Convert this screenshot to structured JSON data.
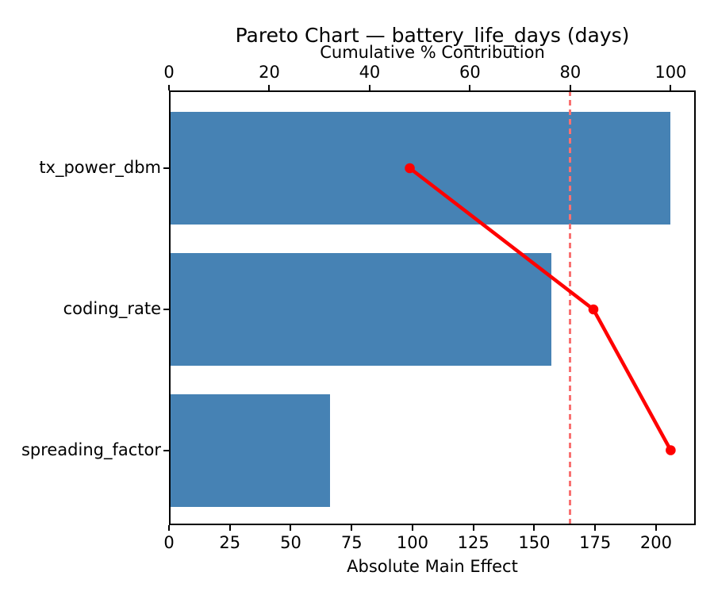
{
  "chart_data": {
    "type": "bar",
    "subtype": "pareto-horizontal",
    "title": "Pareto Chart — battery_life_days (days)",
    "categories": [
      "tx_power_dbm",
      "coding_rate",
      "spreading_factor"
    ],
    "series": [
      {
        "name": "Absolute Main Effect",
        "values": [
          206,
          157,
          66
        ]
      },
      {
        "name": "Cumulative % Contribution",
        "values": [
          48.0,
          84.6,
          100.0
        ]
      }
    ],
    "xlabel": "Absolute Main Effect",
    "top_axis": {
      "label": "Cumulative % Contribution",
      "ticks": [
        0,
        20,
        40,
        60,
        80,
        100
      ],
      "range": [
        0,
        105
      ]
    },
    "bottom_axis": {
      "label": "Absolute Main Effect",
      "ticks": [
        0,
        25,
        50,
        75,
        100,
        125,
        150,
        175,
        200
      ],
      "range": [
        0,
        216.3
      ]
    },
    "threshold_pct": 80,
    "grid": false,
    "legend": "none",
    "colors": {
      "bar": "#4682b4",
      "line": "#ff0000",
      "threshold": "#f87171",
      "text": "#000000",
      "spine": "#000000"
    }
  }
}
